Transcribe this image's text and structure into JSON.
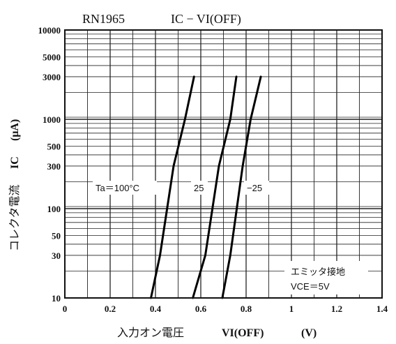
{
  "chart_data": {
    "type": "line",
    "title": {
      "part_number": "RN1965",
      "formula": "IC − VI(OFF)"
    },
    "xlabel": {
      "jp": "入力オン電圧",
      "symbol": "VI(OFF)",
      "unit": "(V)"
    },
    "ylabel": {
      "jp": "コレクタ電流",
      "symbol": "IC",
      "unit": "(μA)"
    },
    "x_axis": {
      "scale": "linear",
      "range": [
        0,
        1.4
      ],
      "ticks": [
        "0",
        "0.2",
        "0.4",
        "0.6",
        "0.8",
        "1",
        "1.2",
        "1.4"
      ],
      "tick_values": [
        0,
        0.2,
        0.4,
        0.6,
        0.8,
        1.0,
        1.2,
        1.4
      ],
      "minor_step": 0.1
    },
    "y_axis": {
      "scale": "log",
      "range": [
        10,
        10000
      ],
      "ticks": [
        "10",
        "30",
        "50",
        "100",
        "300",
        "500",
        "1000",
        "3000",
        "5000",
        "10000"
      ],
      "tick_values": [
        10,
        30,
        50,
        100,
        300,
        500,
        1000,
        3000,
        5000,
        10000
      ]
    },
    "grid": true,
    "series": [
      {
        "name": "Ta=100°C",
        "label": "Ta＝100°C",
        "x": [
          0.38,
          0.42,
          0.48,
          0.53,
          0.57
        ],
        "y": [
          10,
          30,
          300,
          1000,
          3000
        ]
      },
      {
        "name": "25",
        "label": "25",
        "x": [
          0.565,
          0.62,
          0.68,
          0.73,
          0.757
        ],
        "y": [
          10,
          30,
          300,
          1000,
          3000
        ]
      },
      {
        "name": "−25",
        "label": "−25",
        "x": [
          0.695,
          0.73,
          0.785,
          0.82,
          0.865
        ],
        "y": [
          10,
          30,
          300,
          1000,
          3000
        ]
      }
    ],
    "annotation": {
      "line1": "エミッタ接地",
      "line2": "VCE＝5V"
    }
  }
}
